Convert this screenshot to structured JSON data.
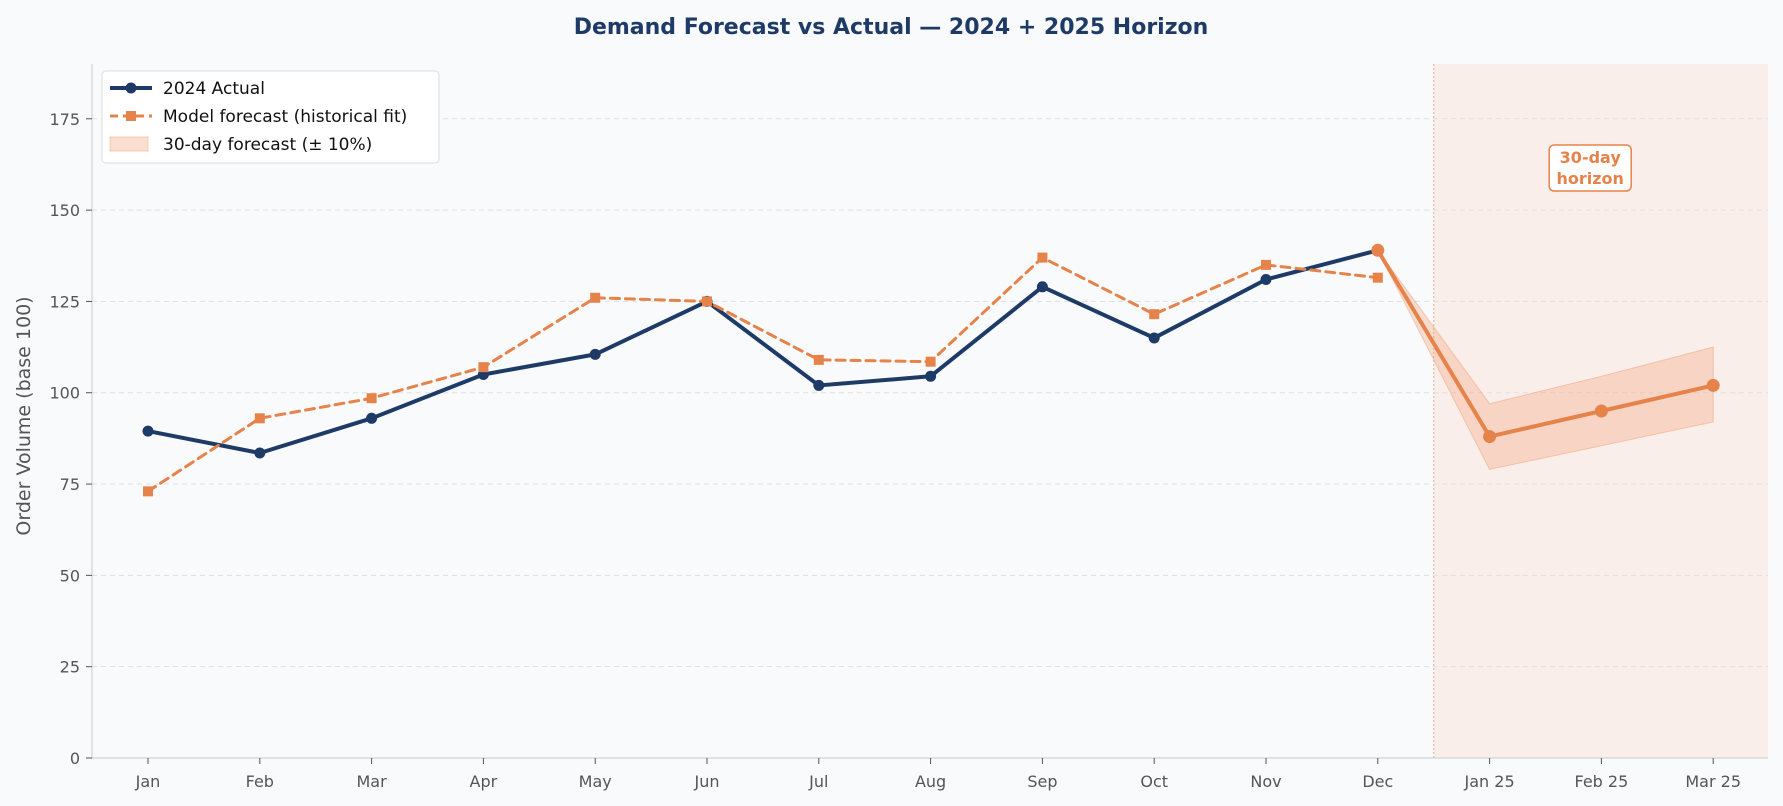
{
  "chart_data": {
    "type": "line",
    "title": "Demand Forecast vs Actual — 2024 + 2025 Horizon",
    "ylabel": "Order Volume (base 100)",
    "xlabel": "",
    "ylim": [
      0,
      190
    ],
    "y_ticks": [
      0,
      25,
      50,
      75,
      100,
      125,
      150,
      175
    ],
    "grid": true,
    "legend_position": "top-left",
    "categories": [
      "Jan",
      "Feb",
      "Mar",
      "Apr",
      "May",
      "Jun",
      "Jul",
      "Aug",
      "Sep",
      "Oct",
      "Nov",
      "Dec",
      "Jan 25",
      "Feb 25",
      "Mar 25"
    ],
    "series": [
      {
        "name": "2024 Actual",
        "style": "solid-circle",
        "color": "#1e3a66",
        "values": [
          89.5,
          83.5,
          93,
          105,
          110.5,
          125,
          102,
          104.5,
          129,
          115,
          131,
          139,
          null,
          null,
          null
        ]
      },
      {
        "name": "Model forecast (historical fit)",
        "style": "dashed-square",
        "color": "#e6834a",
        "values": [
          73,
          93,
          98.5,
          107,
          126,
          125,
          109,
          108.5,
          137,
          121.5,
          135,
          131.5,
          null,
          null,
          null
        ]
      },
      {
        "name": "",
        "style": "solid-circle",
        "color": "#e6834a",
        "values": [
          null,
          null,
          null,
          null,
          null,
          null,
          null,
          null,
          null,
          null,
          null,
          139,
          88,
          95,
          102
        ]
      }
    ],
    "band": {
      "name": "30-day forecast (± 10%)",
      "color": "#f2a27a",
      "start_index": 11,
      "lower": [
        139,
        79,
        85.5,
        92
      ],
      "upper": [
        139,
        97,
        104.5,
        112.5
      ]
    },
    "horizon": {
      "label_line1": "30-day",
      "label_line2": "horizon",
      "color": "#e6834a",
      "start_index": 11.5
    }
  }
}
